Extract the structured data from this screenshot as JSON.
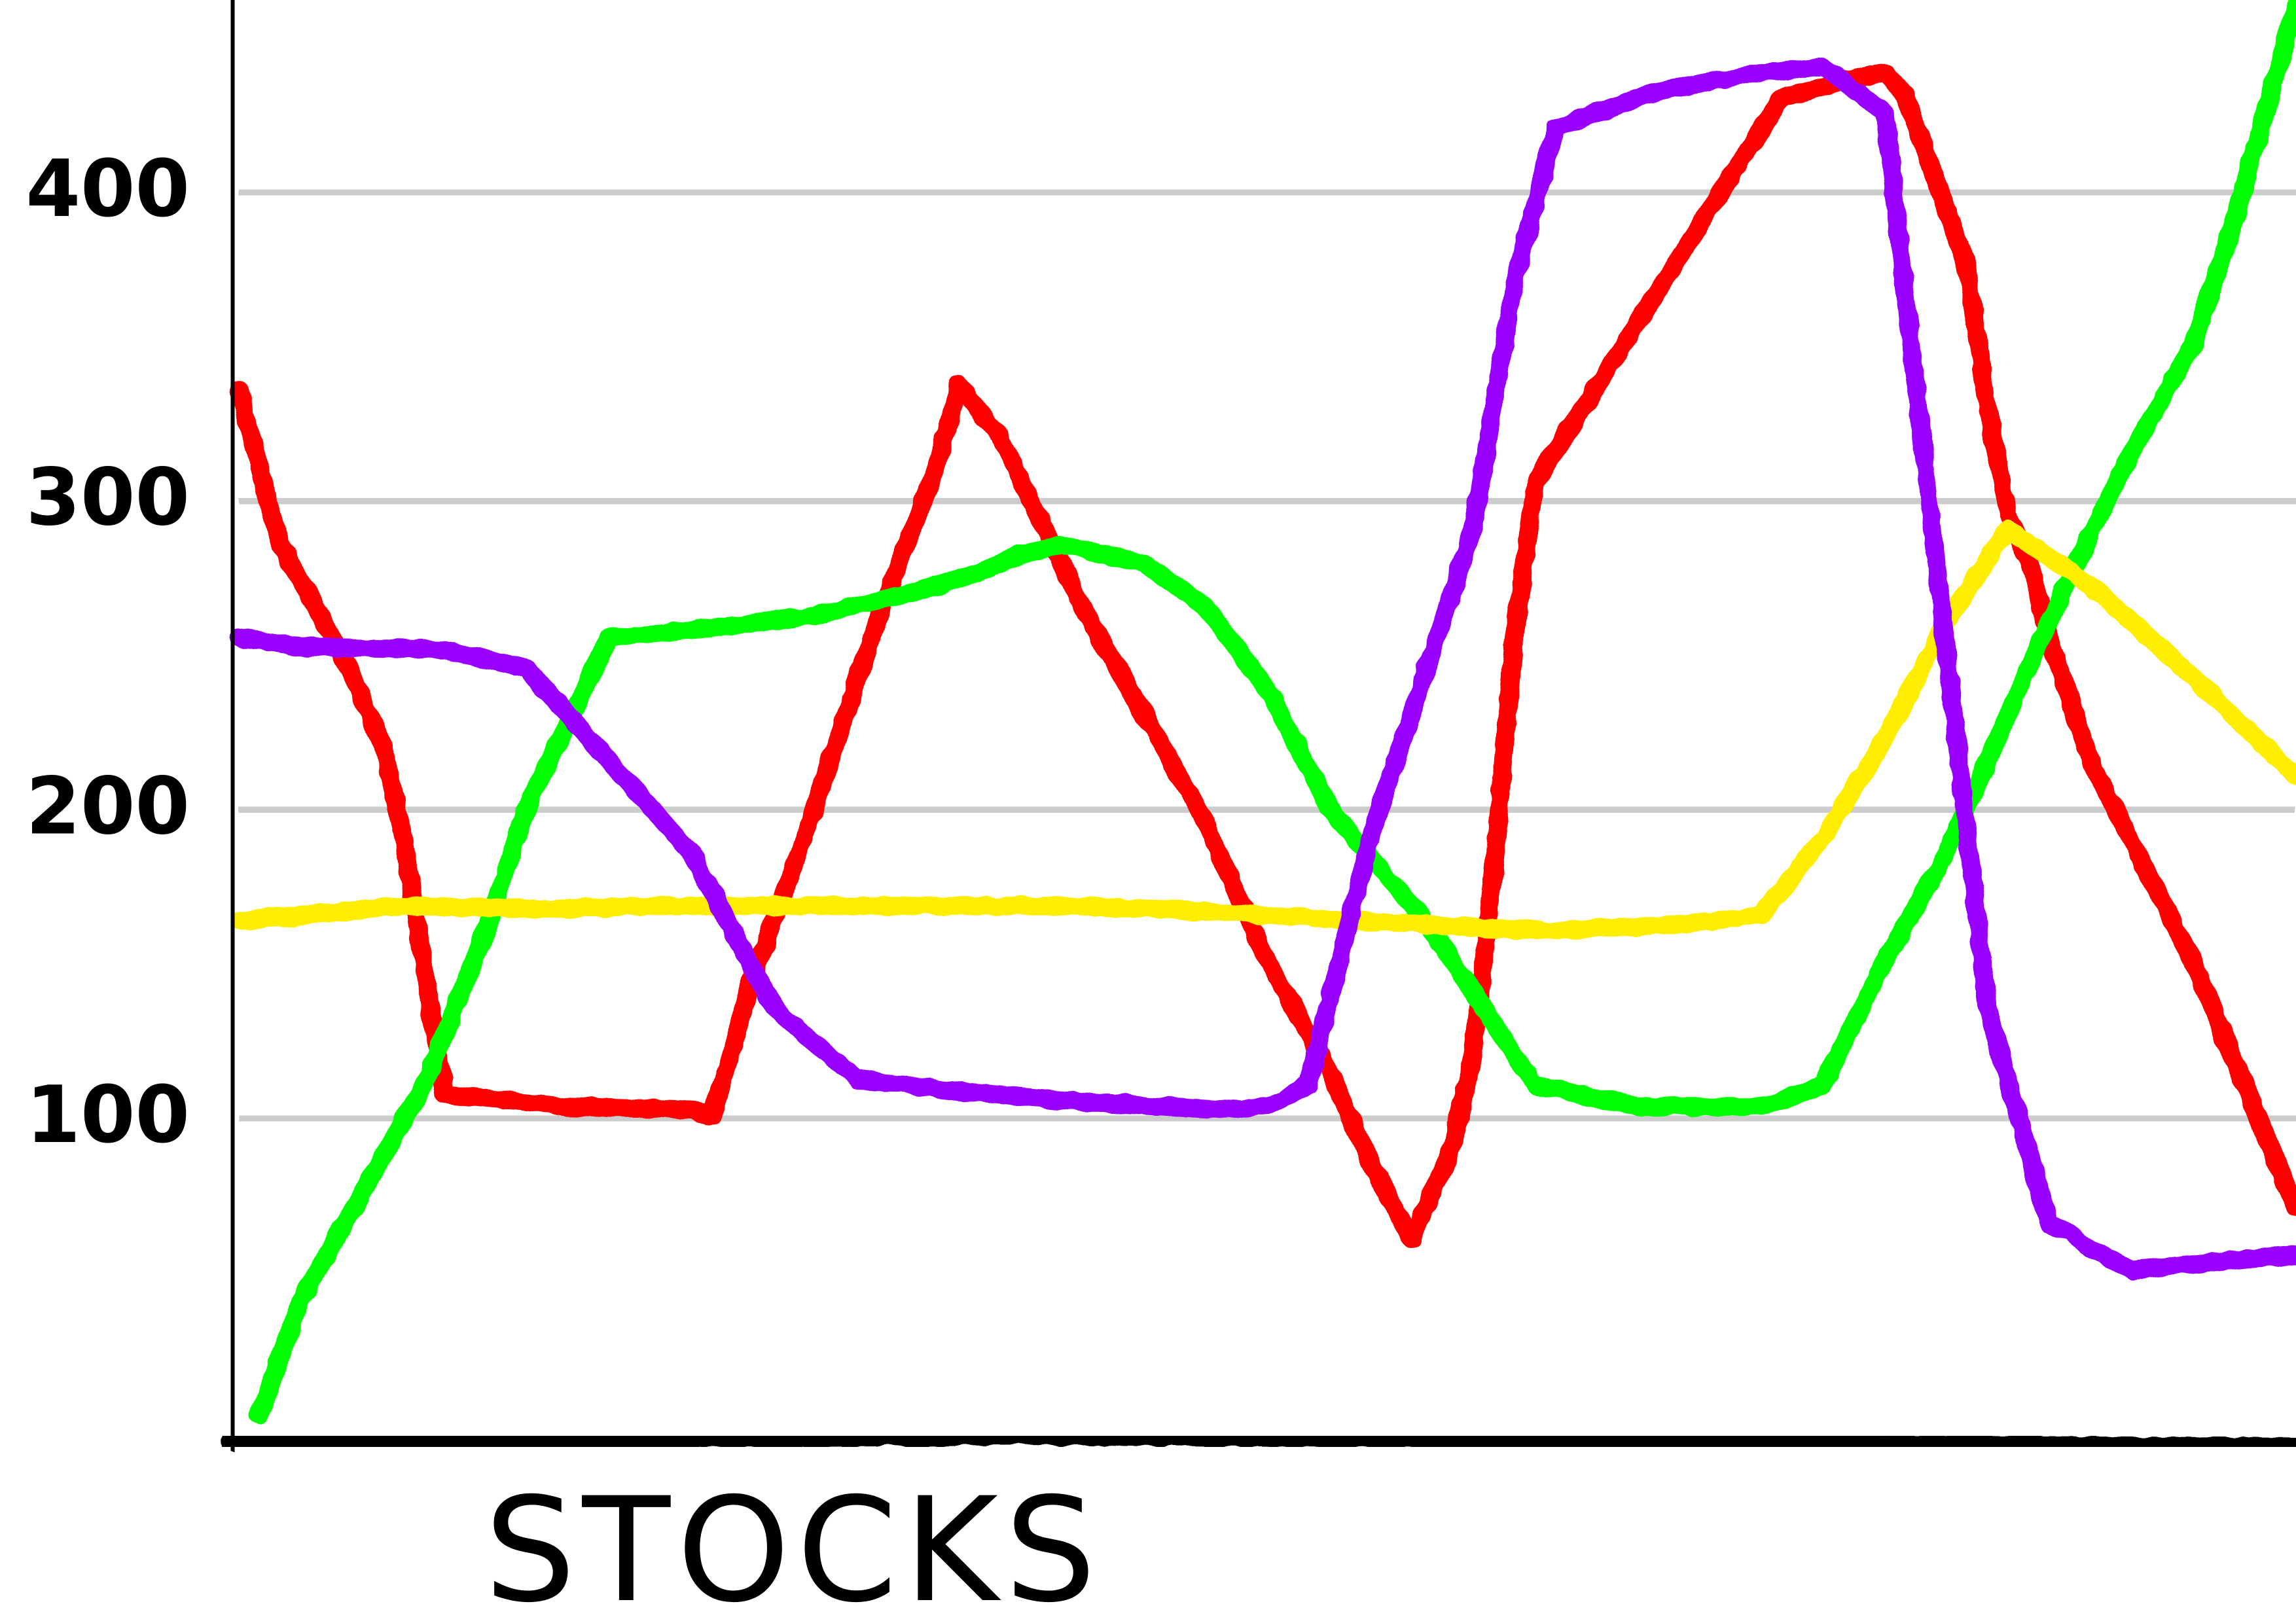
{
  "chart_data": {
    "type": "line",
    "title": "",
    "xlabel": "STOCKS",
    "ylabel": "",
    "ylim": [
      0,
      460
    ],
    "xlim": [
      0,
      100
    ],
    "grid": true,
    "yticks": [
      100,
      200,
      300,
      400
    ],
    "series": [
      {
        "color": "#ff0000",
        "x": [
          0,
          2,
          5,
          7,
          8,
          10,
          16,
          22,
          23,
          25,
          28,
          31,
          34,
          35,
          37,
          41,
          47,
          50,
          53,
          55,
          57,
          59,
          60,
          61,
          62,
          63,
          75,
          78,
          79,
          80,
          81,
          84,
          85,
          86,
          87,
          88,
          90,
          95,
          100
        ],
        "y": [
          335,
          285,
          250,
          220,
          190,
          107,
          103,
          102,
          100,
          145,
          200,
          260,
          312,
          337,
          320,
          265,
          195,
          150,
          115,
          85,
          60,
          90,
          120,
          180,
          255,
          305,
          430,
          435,
          437,
          438,
          431,
          375,
          330,
          295,
          280,
          255,
          215,
          150,
          70
        ]
      },
      {
        "color": "#00ff00",
        "x": [
          1,
          3,
          6,
          9,
          12,
          14,
          18,
          23,
          28,
          33,
          36,
          38,
          40,
          44,
          47,
          50,
          53,
          58,
          63,
          68,
          73,
          74,
          75,
          77,
          80,
          83,
          86,
          89,
          92,
          95,
          97,
          100
        ],
        "y": [
          3,
          40,
          75,
          110,
          160,
          200,
          255,
          258,
          262,
          270,
          276,
          282,
          285,
          279,
          265,
          238,
          200,
          160,
          110,
          103,
          103,
          103,
          105,
          110,
          150,
          185,
          230,
          275,
          315,
          350,
          390,
          460
        ]
      },
      {
        "color": "#ffee00",
        "x": [
          0,
          3,
          8,
          15,
          20,
          28,
          35,
          40,
          45,
          50,
          55,
          60,
          64,
          70,
          74,
          77,
          80,
          83,
          86,
          90,
          95,
          100
        ],
        "y": [
          163,
          165,
          168,
          167,
          168,
          168,
          168,
          168,
          167,
          165,
          163,
          161,
          160,
          162,
          165,
          190,
          222,
          260,
          290,
          272,
          242,
          210
        ]
      },
      {
        "color": "#9900ff",
        "x": [
          0,
          3,
          10,
          14,
          18,
          22,
          26,
          30,
          35,
          40,
          45,
          48,
          50,
          52,
          55,
          60,
          62,
          64,
          66,
          69,
          74,
          77,
          80,
          85,
          88,
          89,
          90,
          92,
          95,
          100
        ],
        "y": [
          255,
          252,
          251,
          245,
          215,
          185,
          135,
          112,
          108,
          105,
          103,
          102,
          103,
          110,
          190,
          290,
          370,
          420,
          425,
          432,
          438,
          440,
          425,
          135,
          65,
          62,
          57,
          50,
          52,
          55
        ]
      }
    ]
  }
}
